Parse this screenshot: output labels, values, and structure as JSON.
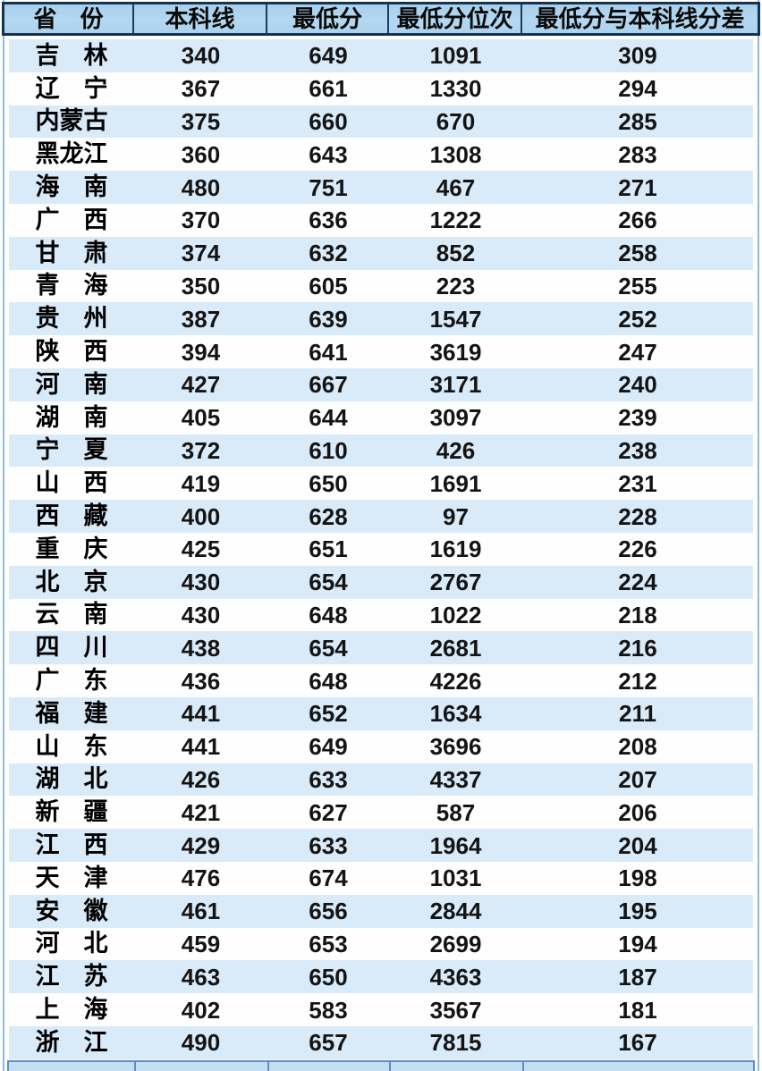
{
  "chart_data": {
    "type": "table",
    "columns": [
      "省　份",
      "本科线",
      "最低分",
      "最低分位次",
      "最低分与本科线分差"
    ],
    "rows": [
      [
        "吉　林",
        "340",
        "649",
        "1091",
        "309"
      ],
      [
        "辽　宁",
        "367",
        "661",
        "1330",
        "294"
      ],
      [
        "内蒙古",
        "375",
        "660",
        "670",
        "285"
      ],
      [
        "黑龙江",
        "360",
        "643",
        "1308",
        "283"
      ],
      [
        "海　南",
        "480",
        "751",
        "467",
        "271"
      ],
      [
        "广　西",
        "370",
        "636",
        "1222",
        "266"
      ],
      [
        "甘　肃",
        "374",
        "632",
        "852",
        "258"
      ],
      [
        "青　海",
        "350",
        "605",
        "223",
        "255"
      ],
      [
        "贵　州",
        "387",
        "639",
        "1547",
        "252"
      ],
      [
        "陕　西",
        "394",
        "641",
        "3619",
        "247"
      ],
      [
        "河　南",
        "427",
        "667",
        "3171",
        "240"
      ],
      [
        "湖　南",
        "405",
        "644",
        "3097",
        "239"
      ],
      [
        "宁　夏",
        "372",
        "610",
        "426",
        "238"
      ],
      [
        "山　西",
        "419",
        "650",
        "1691",
        "231"
      ],
      [
        "西　藏",
        "400",
        "628",
        "97",
        "228"
      ],
      [
        "重　庆",
        "425",
        "651",
        "1619",
        "226"
      ],
      [
        "北　京",
        "430",
        "654",
        "2767",
        "224"
      ],
      [
        "云　南",
        "430",
        "648",
        "1022",
        "218"
      ],
      [
        "四　川",
        "438",
        "654",
        "2681",
        "216"
      ],
      [
        "广　东",
        "436",
        "648",
        "4226",
        "212"
      ],
      [
        "福　建",
        "441",
        "652",
        "1634",
        "211"
      ],
      [
        "山　东",
        "441",
        "649",
        "3696",
        "208"
      ],
      [
        "湖　北",
        "426",
        "633",
        "4337",
        "207"
      ],
      [
        "新　疆",
        "421",
        "627",
        "587",
        "206"
      ],
      [
        "江　西",
        "429",
        "633",
        "1964",
        "204"
      ],
      [
        "天　津",
        "476",
        "674",
        "1031",
        "198"
      ],
      [
        "安　徽",
        "461",
        "656",
        "2844",
        "195"
      ],
      [
        "河　北",
        "459",
        "653",
        "2699",
        "194"
      ],
      [
        "江　苏",
        "463",
        "650",
        "4363",
        "187"
      ],
      [
        "上　海",
        "402",
        "583",
        "3567",
        "181"
      ],
      [
        "浙　江",
        "490",
        "657",
        "7815",
        "167"
      ]
    ],
    "layout_hints": {
      "header_position": "top",
      "zebra_striping": true,
      "first_data_row_shade": "blue"
    }
  },
  "colors": {
    "header_bg": "#aed4ef",
    "header_border": "#17324f",
    "header_separator": "#1d3a5f",
    "row_blue": "#d9eaf8",
    "row_white": "#fefeff",
    "side_rail": "#8fbbdf",
    "partial_row_bg": "#c2def2",
    "partial_row_line": "#5e8fc0",
    "text": "#000000"
  }
}
